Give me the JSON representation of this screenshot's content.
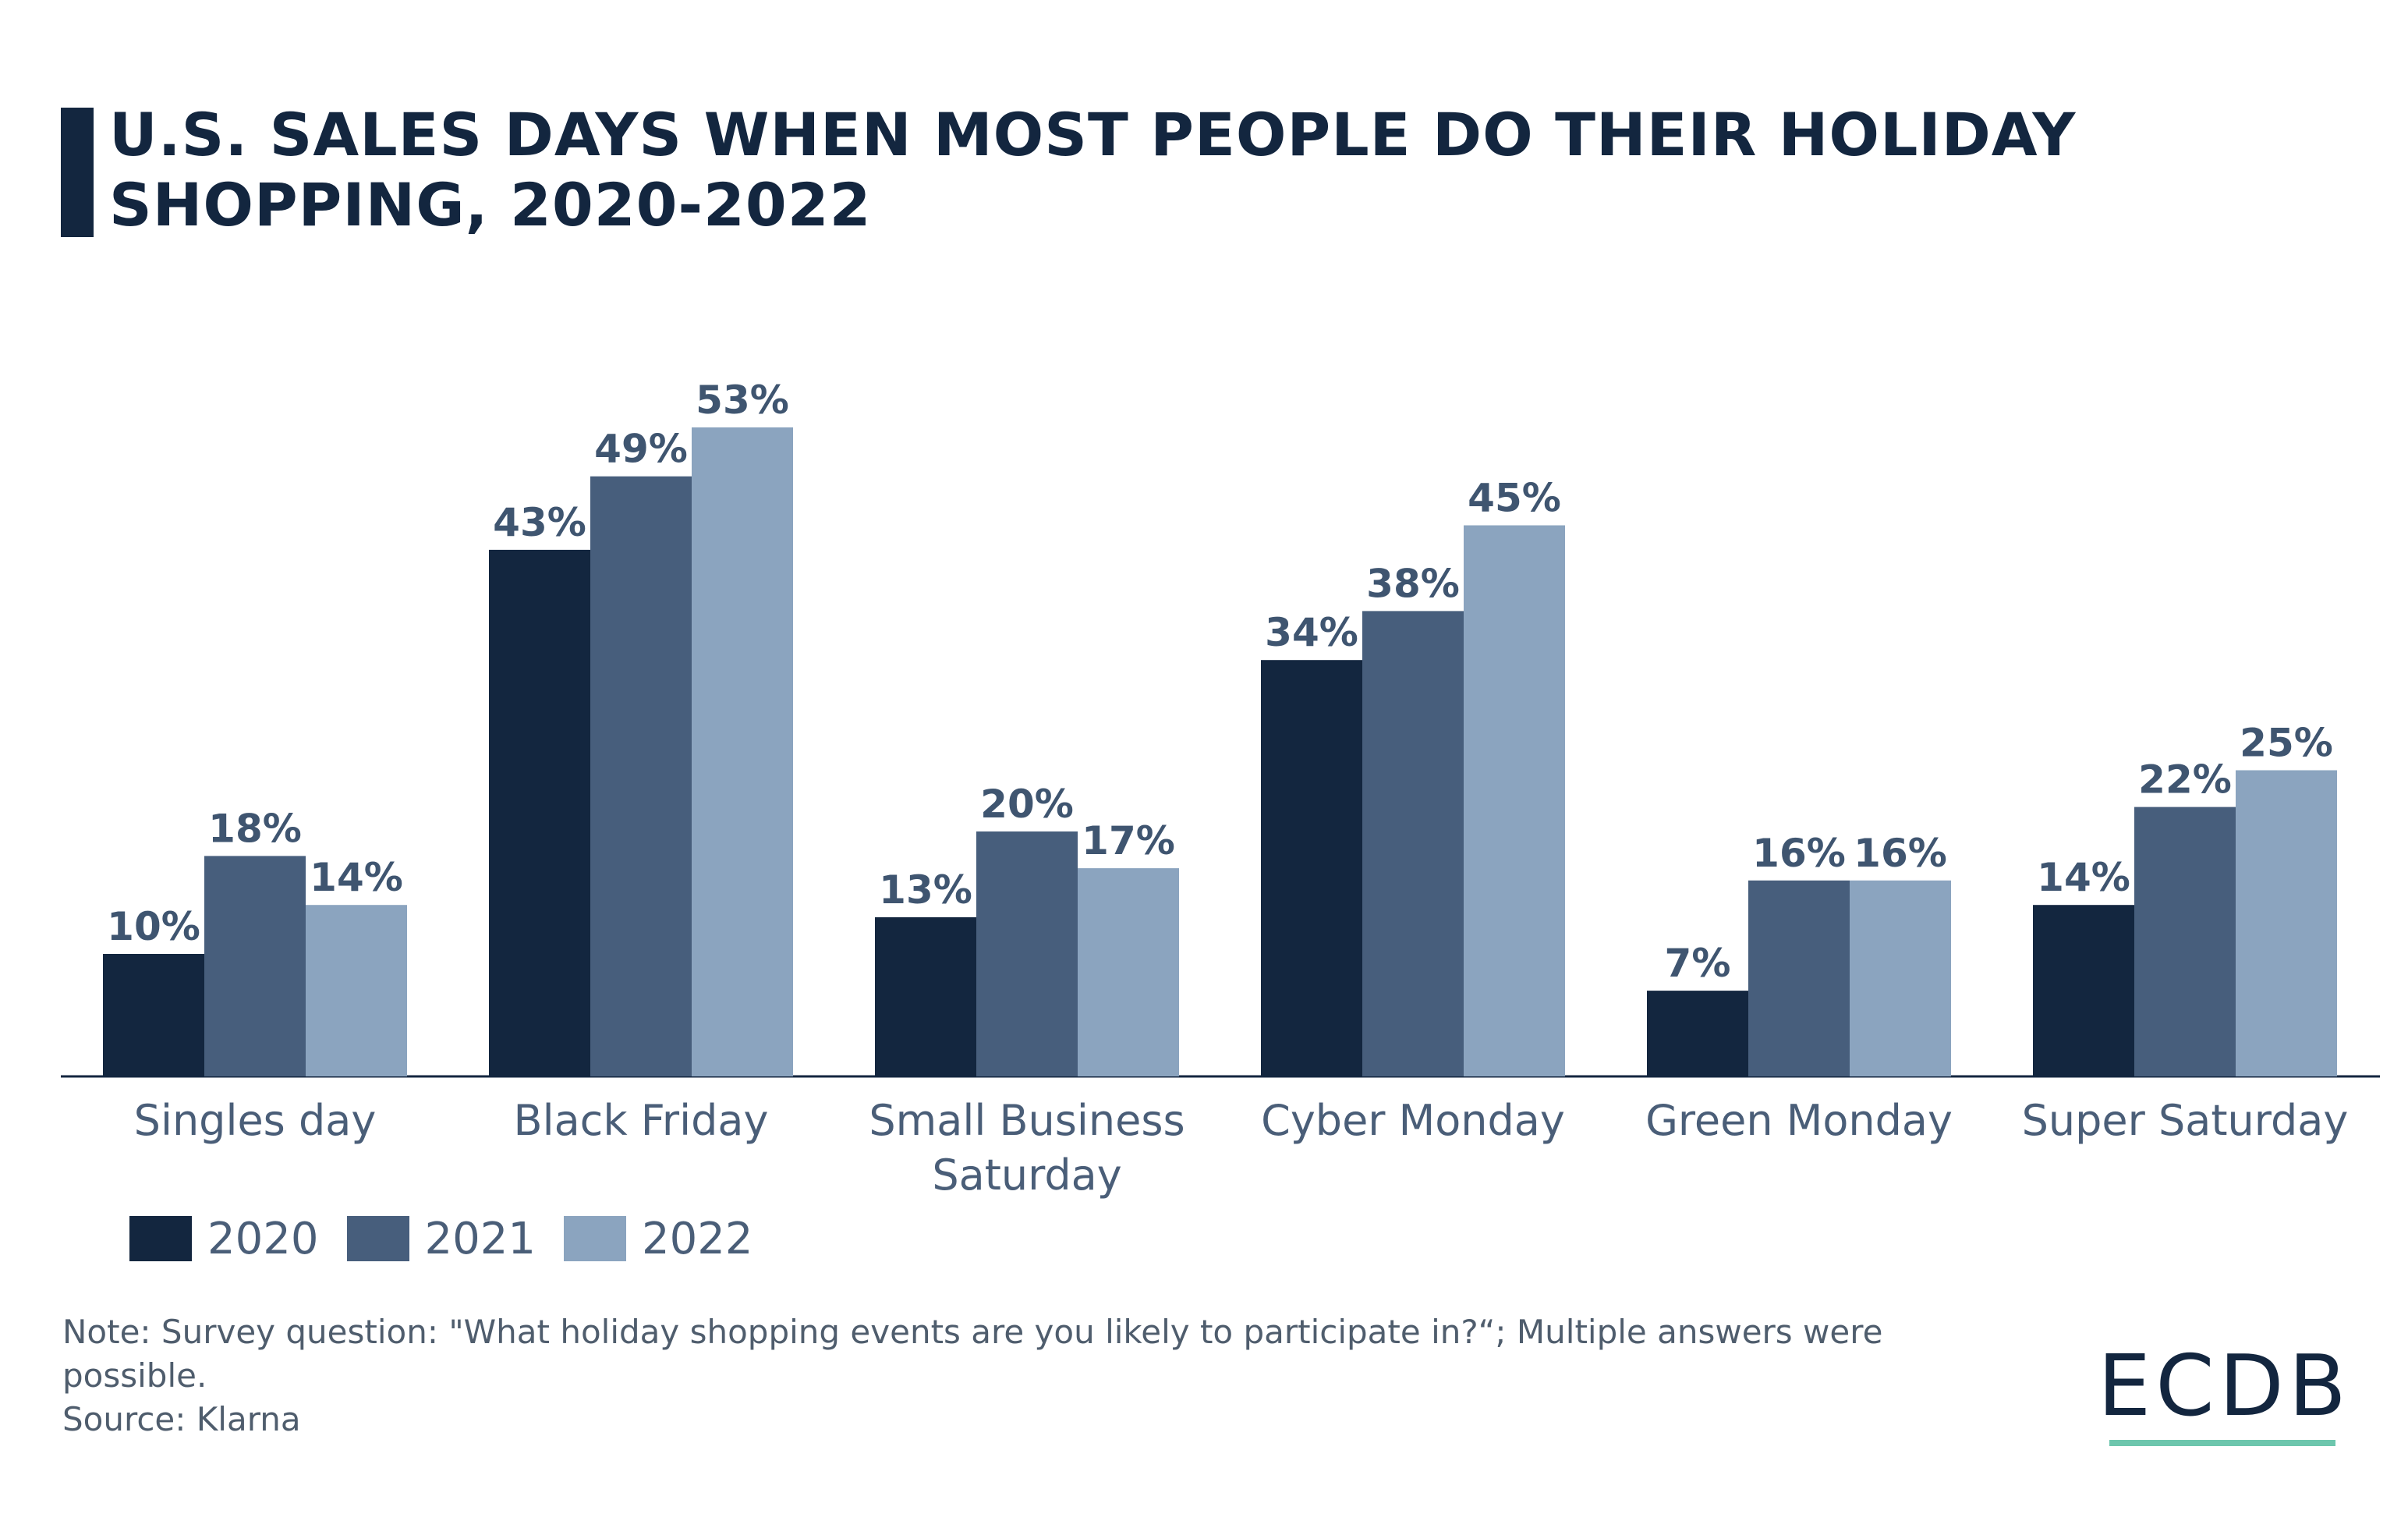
{
  "title": "U.S. SALES DAYS WHEN MOST PEOPLE DO THEIR HOLIDAY SHOPPING, 2020-2022",
  "chart_data": {
    "type": "bar",
    "categories": [
      "Singles day",
      "Black Friday",
      "Small Business Saturday",
      "Cyber Monday",
      "Green Monday",
      "Super Saturday"
    ],
    "series": [
      {
        "name": "2020",
        "color": "#13263f",
        "values": [
          10,
          43,
          13,
          34,
          7,
          14
        ]
      },
      {
        "name": "2021",
        "color": "#475e7c",
        "values": [
          18,
          49,
          20,
          38,
          16,
          22
        ]
      },
      {
        "name": "2022",
        "color": "#8ba4bf",
        "values": [
          14,
          53,
          17,
          45,
          16,
          25
        ]
      }
    ],
    "value_suffix": "%",
    "ylim": [
      0,
      60
    ],
    "grid": false,
    "legend_position": "bottom-left"
  },
  "colors": {
    "label": "#3f5570",
    "axis": "#13263f",
    "category": "#4a5e78"
  },
  "note": "Note: Survey question: \"What holiday shopping events are you likely to participate in?“; Multiple answers were possible.",
  "source": "Source: Klarna",
  "logo": "ECDB"
}
